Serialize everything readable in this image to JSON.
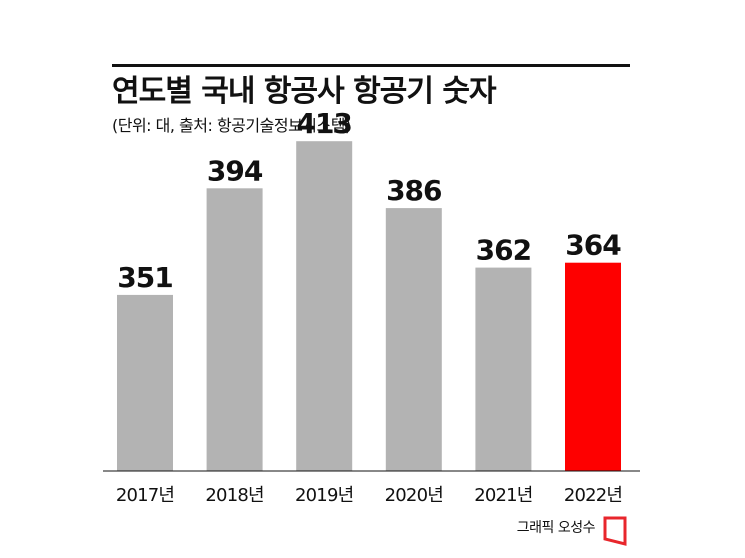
{
  "chart_data": {
    "type": "bar",
    "title": "연도별 국내 항공사 항공기 숫자",
    "subtitle": "(단위: 대, 출처: 항공기술정보시스템)",
    "categories": [
      "2017년",
      "2018년",
      "2019년",
      "2020년",
      "2021년",
      "2022년"
    ],
    "values": [
      351,
      394,
      413,
      386,
      362,
      364
    ],
    "xlabel": "",
    "ylabel": "",
    "grid": false,
    "legend": "none",
    "colors": {
      "bar": "#b3b3b3",
      "highlight": "#fe0000",
      "axis": "#111111"
    },
    "highlight_index": 5
  },
  "credit": "그래픽 오성수",
  "logo": {
    "icon": "publisher-logo-icon",
    "color": "#e8262c"
  }
}
